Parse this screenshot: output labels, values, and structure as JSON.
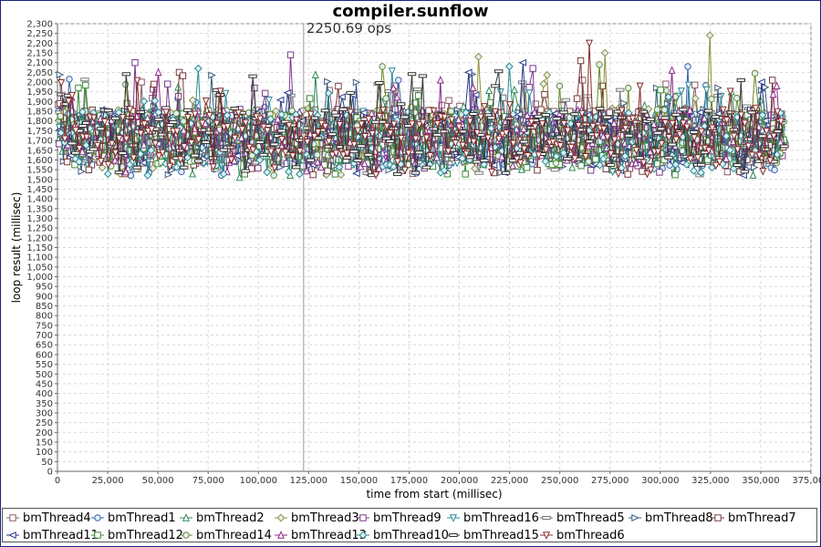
{
  "chart_data": {
    "type": "line",
    "title": "compiler.sunflow",
    "annotation": "2250.69 ops",
    "annotation_x": 122500,
    "xlabel": "time from start (millisec)",
    "ylabel": "loop result (millisec)",
    "xlim": [
      0,
      375000
    ],
    "ylim": [
      0,
      2300
    ],
    "x_ticks": [
      0,
      25000,
      50000,
      75000,
      100000,
      125000,
      150000,
      175000,
      200000,
      225000,
      250000,
      275000,
      300000,
      325000,
      350000,
      375000
    ],
    "x_tick_labels": [
      "0",
      "25,000",
      "50,000",
      "75,000",
      "100,000",
      "125,000",
      "150,000",
      "175,000",
      "200,000",
      "225,000",
      "250,000",
      "275,000",
      "300,000",
      "325,000",
      "350,000",
      "375,000"
    ],
    "y_ticks": [
      0,
      50,
      100,
      150,
      200,
      250,
      300,
      350,
      400,
      450,
      500,
      550,
      600,
      650,
      700,
      750,
      800,
      850,
      900,
      950,
      1000,
      1050,
      1100,
      1150,
      1200,
      1250,
      1300,
      1350,
      1400,
      1450,
      1500,
      1550,
      1600,
      1650,
      1700,
      1750,
      1800,
      1850,
      1900,
      1950,
      2000,
      2050,
      2100,
      2150,
      2200,
      2250,
      2300
    ],
    "y_tick_labels": [
      "0",
      "50",
      "100",
      "150",
      "200",
      "250",
      "300",
      "350",
      "400",
      "450",
      "500",
      "550",
      "600",
      "650",
      "700",
      "750",
      "800",
      "850",
      "900",
      "950",
      "1,000",
      "1,050",
      "1,100",
      "1,150",
      "1,200",
      "1,250",
      "1,300",
      "1,350",
      "1,400",
      "1,450",
      "1,500",
      "1,550",
      "1,600",
      "1,650",
      "1,700",
      "1,750",
      "1,800",
      "1,850",
      "1,900",
      "1,950",
      "2,000",
      "2,050",
      "2,100",
      "2,150",
      "2,200",
      "2,250",
      "2,300"
    ],
    "grid": true,
    "legend_position": "bottom",
    "series": [
      {
        "name": "bmThread4",
        "marker": "square",
        "color": "#8a5a6a",
        "x_start": 400,
        "x_end": 361500,
        "x_step": 1800,
        "y_base": 1720,
        "y_range": 140,
        "peaks": [
          [
            41000,
            2000
          ],
          [
            168000,
            1980
          ],
          [
            262000,
            2010
          ],
          [
            302000,
            1990
          ]
        ]
      },
      {
        "name": "bmThread1",
        "marker": "circle",
        "color": "#3a5faa",
        "x_start": 500,
        "x_end": 362000,
        "x_step": 1800,
        "y_base": 1710,
        "y_range": 140,
        "peaks": [
          [
            122000,
            2020
          ],
          [
            170000,
            2010
          ],
          [
            313000,
            2110
          ],
          [
            314000,
            2080
          ]
        ]
      },
      {
        "name": "bmThread2",
        "marker": "triangle-up",
        "color": "#2e8b57",
        "x_start": 600,
        "x_end": 362500,
        "x_step": 1800,
        "y_base": 1720,
        "y_range": 140,
        "peaks": [
          [
            90000,
            1510
          ],
          [
            228000,
            1960
          ],
          [
            335000,
            1950
          ]
        ]
      },
      {
        "name": "bmThread3",
        "marker": "diamond",
        "color": "#8f8f3a",
        "x_start": 700,
        "x_end": 361000,
        "x_step": 1800,
        "y_base": 1730,
        "y_range": 140,
        "peaks": [
          [
            209000,
            2130
          ],
          [
            273000,
            2150
          ],
          [
            324000,
            2240
          ]
        ]
      },
      {
        "name": "bmThread9",
        "marker": "square",
        "color": "#7a3a8a",
        "x_start": 800,
        "x_end": 361500,
        "x_step": 1800,
        "y_base": 1720,
        "y_range": 140,
        "peaks": [
          [
            39000,
            2100
          ],
          [
            116000,
            2140
          ],
          [
            236000,
            2070
          ]
        ]
      },
      {
        "name": "bmThread16",
        "marker": "triangle-down",
        "color": "#2a8a9a",
        "x_start": 900,
        "x_end": 362000,
        "x_step": 1800,
        "y_base": 1710,
        "y_range": 140,
        "peaks": [
          [
            323000,
            1960
          ],
          [
            220000,
            1950
          ]
        ]
      },
      {
        "name": "bmThread5",
        "marker": "dash",
        "color": "#777777",
        "x_start": 1000,
        "x_end": 361000,
        "x_step": 1800,
        "y_base": 1720,
        "y_range": 140,
        "peaks": [
          [
            160000,
            1990
          ],
          [
            280000,
            1960
          ]
        ]
      },
      {
        "name": "bmThread8",
        "marker": "triangle-right",
        "color": "#3a5a7a",
        "x_start": 1100,
        "x_end": 361500,
        "x_step": 1800,
        "y_base": 1720,
        "y_range": 140,
        "peaks": [
          [
            206000,
            2040
          ],
          [
            298000,
            1970
          ]
        ]
      },
      {
        "name": "bmThread7",
        "marker": "square-dot",
        "color": "#7a3a3a",
        "x_start": 1200,
        "x_end": 362000,
        "x_step": 1800,
        "y_base": 1720,
        "y_range": 140,
        "peaks": [
          [
            60000,
            2050
          ],
          [
            261000,
            2110
          ],
          [
            355000,
            2010
          ]
        ]
      },
      {
        "name": "bmThread11",
        "marker": "triangle-left",
        "color": "#2a3a8a",
        "x_start": 1300,
        "x_end": 361000,
        "x_step": 1800,
        "y_base": 1710,
        "y_range": 140,
        "peaks": [
          [
            232000,
            2100
          ],
          [
            205000,
            2050
          ],
          [
            350000,
            2000
          ]
        ]
      },
      {
        "name": "bmThread12",
        "marker": "square",
        "color": "#3a8a3a",
        "x_start": 1400,
        "x_end": 361500,
        "x_step": 1800,
        "y_base": 1700,
        "y_range": 140,
        "peaks": [
          [
            10000,
            1970
          ],
          [
            300000,
            1960
          ]
        ]
      },
      {
        "name": "bmThread14",
        "marker": "circle",
        "color": "#6a8a2a",
        "x_start": 1500,
        "x_end": 362000,
        "x_step": 1800,
        "y_base": 1720,
        "y_range": 140,
        "peaks": [
          [
            162000,
            2080
          ],
          [
            270000,
            2090
          ],
          [
            250000,
            1980
          ]
        ]
      },
      {
        "name": "bmThread13",
        "marker": "triangle-up",
        "color": "#8a2a8a",
        "x_start": 1600,
        "x_end": 361000,
        "x_step": 1800,
        "y_base": 1720,
        "y_range": 140,
        "peaks": [
          [
            50000,
            2050
          ],
          [
            190000,
            2010
          ],
          [
            305000,
            2060
          ]
        ]
      },
      {
        "name": "bmThread10",
        "marker": "diamond",
        "color": "#2a8a8a",
        "x_start": 1700,
        "x_end": 361500,
        "x_step": 1800,
        "y_base": 1710,
        "y_range": 140,
        "peaks": [
          [
            70000,
            2070
          ],
          [
            225000,
            2080
          ]
        ]
      },
      {
        "name": "bmThread15",
        "marker": "dash",
        "color": "#333333",
        "x_start": 1800,
        "x_end": 362000,
        "x_step": 1800,
        "y_base": 1730,
        "y_range": 140,
        "peaks": [
          [
            98000,
            2030
          ],
          [
            218000,
            1980
          ],
          [
            340000,
            2010
          ]
        ]
      },
      {
        "name": "bmThread6",
        "marker": "triangle-down",
        "color": "#8a2a2a",
        "x_start": 1900,
        "x_end": 361000,
        "x_step": 1800,
        "y_base": 1720,
        "y_range": 140,
        "peaks": [
          [
            265000,
            2200
          ],
          [
            290000,
            1980
          ]
        ]
      }
    ]
  }
}
